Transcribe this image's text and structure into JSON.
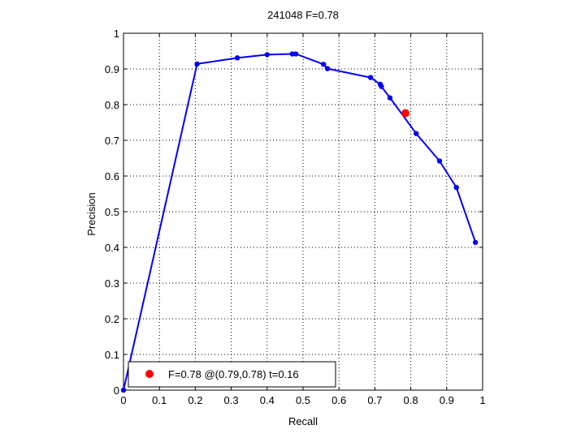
{
  "chart_data": {
    "type": "line",
    "title": "241048 F=0.78",
    "xlabel": "Recall",
    "ylabel": "Precision",
    "xlim": [
      0,
      1
    ],
    "ylim": [
      0,
      1
    ],
    "xticks": [
      "0",
      "0.1",
      "0.2",
      "0.3",
      "0.4",
      "0.5",
      "0.6",
      "0.7",
      "0.8",
      "0.9",
      "1"
    ],
    "yticks": [
      "0",
      "0.1",
      "0.2",
      "0.3",
      "0.4",
      "0.5",
      "0.6",
      "0.7",
      "0.8",
      "0.9",
      "1"
    ],
    "grid": true,
    "series": [
      {
        "color": "#0000ff",
        "x": [
          0.0,
          0.205,
          0.317,
          0.4,
          0.47,
          0.48,
          0.557,
          0.568,
          0.688,
          0.715,
          0.718,
          0.742,
          0.815,
          0.88,
          0.927,
          0.98
        ],
        "y": [
          0.0,
          0.914,
          0.931,
          0.94,
          0.942,
          0.942,
          0.913,
          0.901,
          0.876,
          0.857,
          0.851,
          0.819,
          0.719,
          0.642,
          0.568,
          0.414
        ]
      }
    ],
    "best_point": {
      "x": 0.785,
      "y": 0.776,
      "color": "#ff0000"
    },
    "legend": {
      "position": "bottom-left",
      "text": "F=0.78 @(0.79,0.78) t=0.16"
    }
  }
}
